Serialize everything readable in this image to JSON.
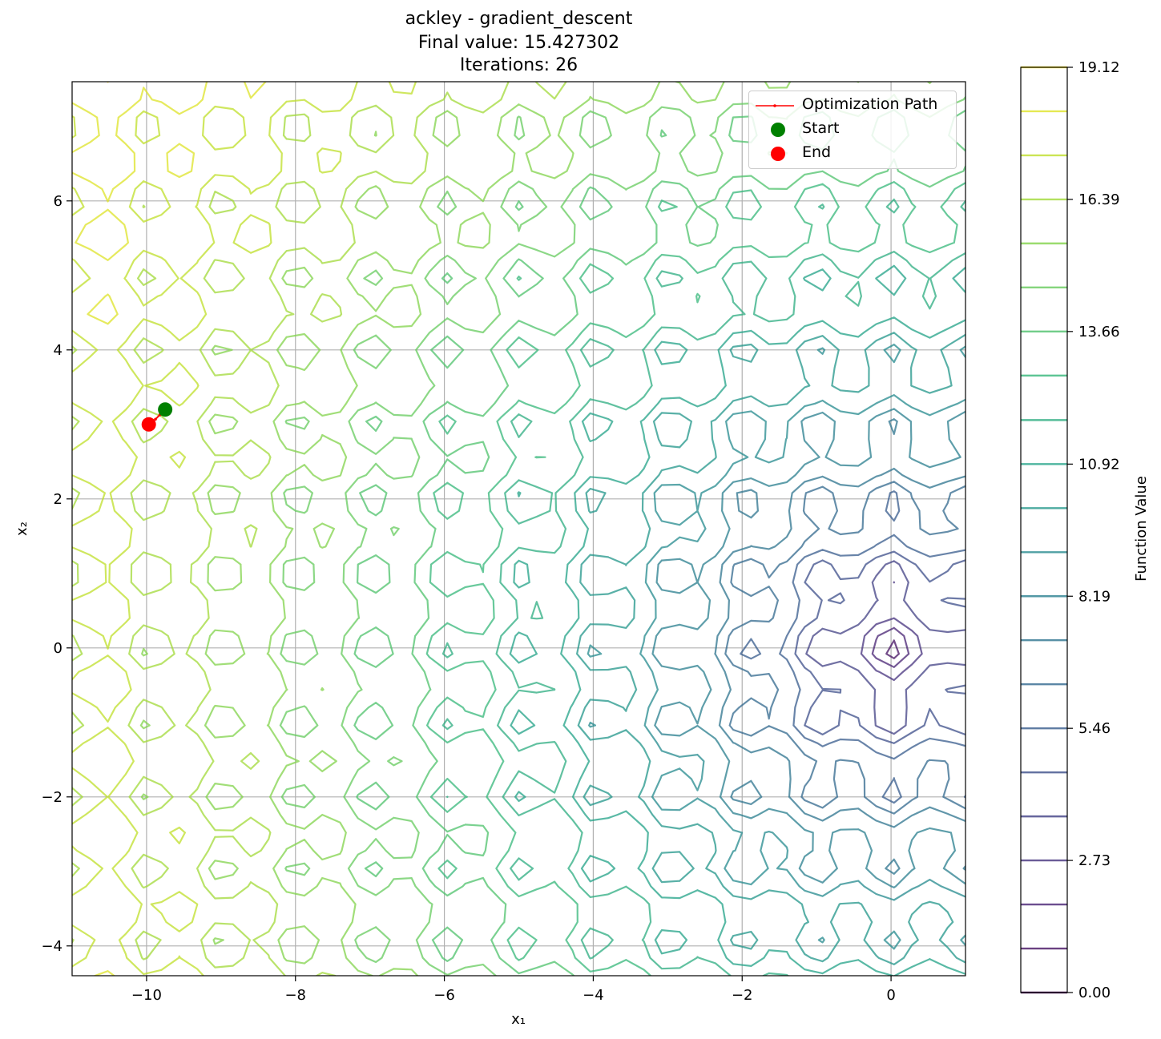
{
  "title": {
    "line1": "ackley - gradient_descent",
    "line2": "Final value: 15.427302",
    "line3": "Iterations: 26"
  },
  "chart_data": {
    "type": "contour",
    "function": "ackley",
    "xlabel": "x₁",
    "ylabel": "x₂",
    "xlim": [
      -11,
      1
    ],
    "ylim": [
      -4.4,
      7.6
    ],
    "xticks": [
      -10,
      -8,
      -6,
      -4,
      -2,
      0
    ],
    "yticks": [
      -4,
      -2,
      0,
      2,
      4,
      6
    ],
    "xtick_labels": [
      "−10",
      "−8",
      "−6",
      "−4",
      "−2",
      "0"
    ],
    "ytick_labels": [
      "−4",
      "−2",
      "0",
      "2",
      "4",
      "6"
    ],
    "grid": true,
    "contour_levels": [
      0.0,
      0.91,
      1.82,
      2.73,
      3.64,
      4.55,
      5.46,
      6.37,
      7.28,
      8.19,
      9.1,
      10.01,
      10.92,
      11.83,
      12.75,
      13.66,
      14.57,
      15.48,
      16.39,
      17.3,
      18.21,
      19.12
    ],
    "colorbar": {
      "label": "Function Value",
      "ticks": [
        0.0,
        2.73,
        5.46,
        8.19,
        10.92,
        13.66,
        16.39,
        19.12
      ],
      "tick_labels": [
        "0.00",
        "2.73",
        "5.46",
        "8.19",
        "10.92",
        "13.66",
        "16.39",
        "19.12"
      ],
      "range": [
        0.0,
        19.12
      ]
    },
    "path": {
      "name": "Optimization Path",
      "color": "#ff0000",
      "points": [
        [
          -9.75,
          3.2
        ],
        [
          -9.82,
          3.13
        ],
        [
          -9.88,
          3.07
        ],
        [
          -9.93,
          3.03
        ],
        [
          -9.97,
          3.0
        ]
      ],
      "start": [
        -9.75,
        3.2
      ],
      "end": [
        -9.97,
        3.0
      ]
    },
    "legend": {
      "position": "top-right",
      "entries": [
        {
          "label": "Optimization Path",
          "color": "#ff0000",
          "marker": "line"
        },
        {
          "label": "Start",
          "color": "#008000",
          "marker": "circle"
        },
        {
          "label": "End",
          "color": "#ff0000",
          "marker": "circle"
        }
      ]
    },
    "colormap": "viridis"
  }
}
